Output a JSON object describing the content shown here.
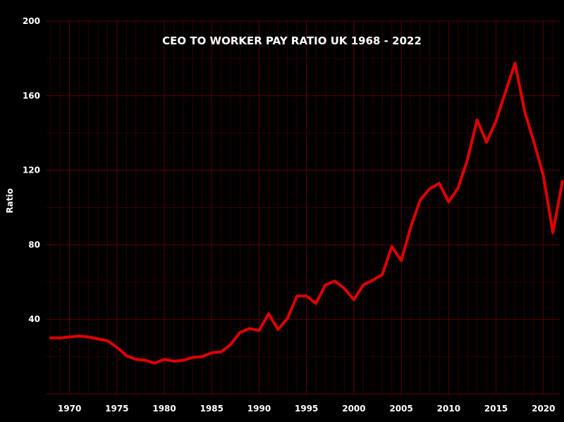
{
  "chart_data": {
    "type": "line",
    "title": "CEO TO WORKER PAY RATIO UK 1968 - 2022",
    "xlabel": "",
    "ylabel": "Ratio",
    "xlim": [
      1967.5,
      2021.8
    ],
    "ylim": [
      0,
      200
    ],
    "x_ticks": [
      1970,
      1975,
      1980,
      1985,
      1990,
      1995,
      2000,
      2005,
      2010,
      2015,
      2020
    ],
    "y_ticks": [
      40,
      80,
      120,
      160,
      200
    ],
    "grid": true,
    "colors": {
      "background": "#000000",
      "line": "#e00000",
      "grid_major": "#5a0000",
      "grid_minor": "#2e0000",
      "text": "#ffffff"
    },
    "series": [
      {
        "name": "",
        "x": [
          1968,
          1969,
          1970,
          1971,
          1972,
          1973,
          1974,
          1975,
          1976,
          1977,
          1978,
          1979,
          1980,
          1981,
          1982,
          1983,
          1984,
          1985,
          1986,
          1987,
          1988,
          1989,
          1990,
          1991,
          1992,
          1993,
          1994,
          1995,
          1996,
          1997,
          1998,
          1999,
          2000,
          2001,
          2002,
          2003,
          2004,
          2005,
          2006,
          2007,
          2008,
          2009,
          2010,
          2011,
          2012,
          2013,
          2014,
          2015,
          2016,
          2017,
          2018,
          2019,
          2020,
          2021,
          2022
        ],
        "values": [
          30,
          30,
          30.5,
          31,
          30.5,
          29.5,
          28.5,
          25,
          20.5,
          18.5,
          18,
          16.5,
          18.5,
          17.5,
          18,
          19.5,
          20,
          22,
          22.5,
          26.5,
          33,
          35,
          34,
          43,
          34.5,
          40.5,
          52.5,
          52.5,
          48.5,
          58.5,
          60.5,
          56.5,
          50.5,
          58.5,
          61,
          64,
          79,
          71.5,
          89.5,
          104,
          110,
          113,
          103,
          110.5,
          126,
          147,
          135,
          146.5,
          162,
          177.5,
          152,
          135,
          117,
          86.5,
          114
        ]
      }
    ]
  }
}
